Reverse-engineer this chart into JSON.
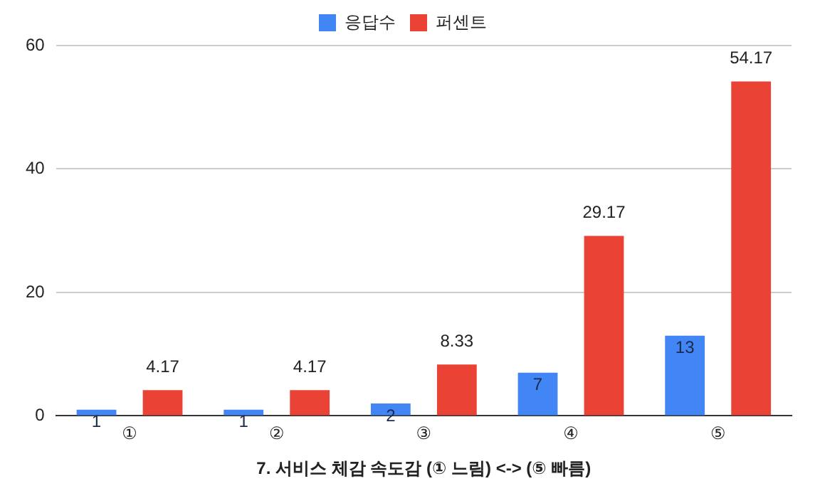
{
  "chart_data": {
    "type": "bar",
    "xlabel": "7. 서비스 체감 속도감 (① 느림) <-> (⑤ 빠름)",
    "categories": [
      "①",
      "②",
      "③",
      "④",
      "⑤"
    ],
    "series": [
      {
        "name": "응답수",
        "color": "#4285f4",
        "values": [
          1,
          1,
          2,
          7,
          13
        ]
      },
      {
        "name": "퍼센트",
        "color": "#ea4335",
        "values": [
          4.17,
          4.17,
          8.33,
          29.17,
          54.17
        ]
      }
    ],
    "ylim": [
      0,
      60
    ],
    "yticks": [
      0,
      20,
      40,
      60
    ],
    "grid": "y",
    "legend": "top",
    "data_labels": true
  }
}
